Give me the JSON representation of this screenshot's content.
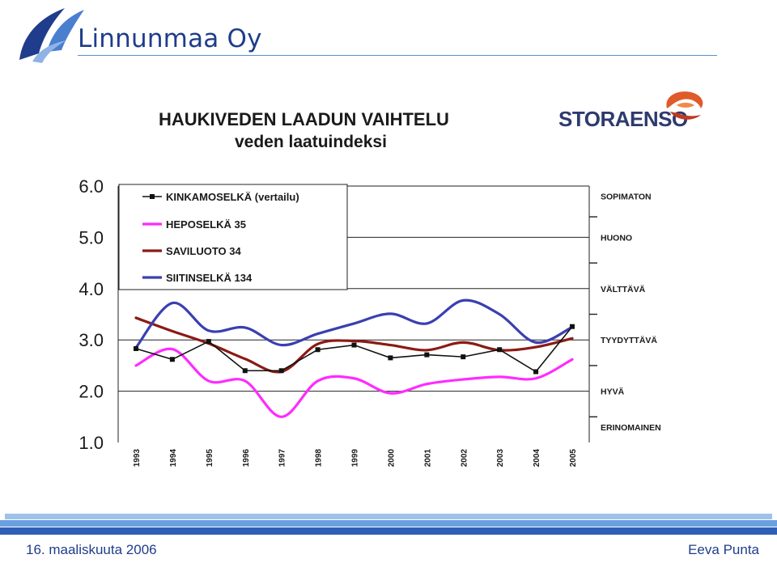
{
  "header": {
    "company_name": "Linnunmaa Oy",
    "logo_icon": "bird-wing-logo"
  },
  "sponsor": {
    "name": "STORAENSO",
    "logo_icon": "storaenso-swirl"
  },
  "footer": {
    "date": "16. maaliskuuta 2006",
    "author": "Eeva Punta"
  },
  "colors": {
    "brand_blue": "#1f3d8c",
    "kinkamoselka": "#111111",
    "heposelka": "#ff2bff",
    "saviluoto": "#8b1a14",
    "siitinselka": "#3a3fb0"
  },
  "chart_data": {
    "type": "line",
    "title": "HAUKIVEDEN LAADUN VAIHTELU",
    "subtitle": "veden laatuindeksi",
    "categories": [
      "1993",
      "1994",
      "1995",
      "1996",
      "1997",
      "1998",
      "1999",
      "2000",
      "2001",
      "2002",
      "2003",
      "2004",
      "2005"
    ],
    "y_ticks": [
      "1.0",
      "2.0",
      "3.0",
      "4.0",
      "5.0",
      "6.0"
    ],
    "ylim": [
      1.0,
      6.0
    ],
    "grid": "horizontal",
    "legend_position": "top-left",
    "series": [
      {
        "name": "KINKAMOSELKÄ (vertailu)",
        "markers": true,
        "values": [
          2.83,
          2.62,
          2.97,
          2.4,
          2.4,
          2.81,
          2.9,
          2.65,
          2.71,
          2.67,
          2.81,
          2.38,
          3.26
        ]
      },
      {
        "name": "HEPOSELKÄ 35",
        "markers": false,
        "values": [
          2.5,
          2.82,
          2.2,
          2.2,
          1.5,
          2.2,
          2.25,
          1.96,
          2.14,
          2.23,
          2.28,
          2.25,
          2.62
        ]
      },
      {
        "name": "SAVILUOTO 34",
        "markers": false,
        "values": [
          3.43,
          3.17,
          2.93,
          2.63,
          2.38,
          2.92,
          2.98,
          2.9,
          2.8,
          2.95,
          2.8,
          2.86,
          3.03
        ]
      },
      {
        "name": "SIITINSELKÄ 134",
        "markers": false,
        "values": [
          2.85,
          3.72,
          3.18,
          3.24,
          2.9,
          3.12,
          3.32,
          3.51,
          3.32,
          3.77,
          3.5,
          2.95,
          3.25
        ]
      }
    ],
    "quality_classes": [
      {
        "label": "SOPIMATON",
        "at": 5.8
      },
      {
        "label": "HUONO",
        "at": 5.0
      },
      {
        "label": "VÄLTTÄVÄ",
        "at": 4.0
      },
      {
        "label": "TYYDYTTÄVÄ",
        "at": 3.0
      },
      {
        "label": "HYVÄ",
        "at": 2.0
      },
      {
        "label": "ERINOMAINEN",
        "at": 1.3
      }
    ]
  }
}
